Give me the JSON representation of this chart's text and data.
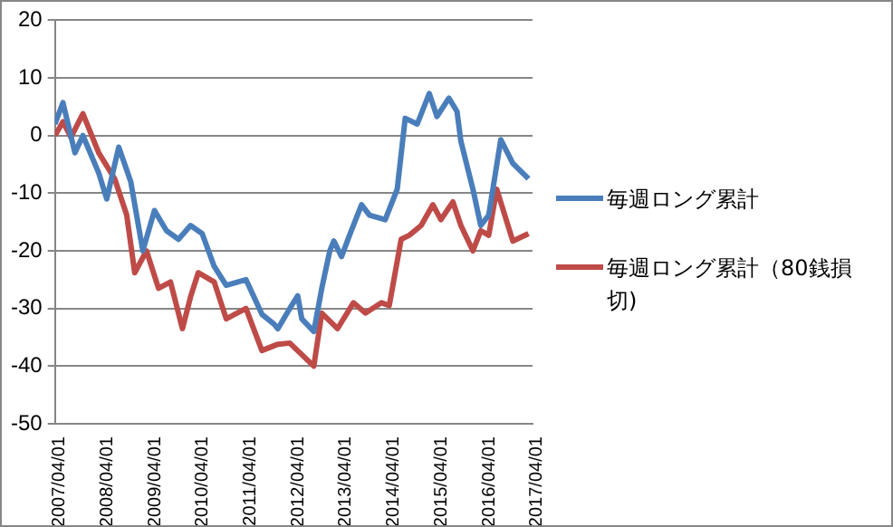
{
  "chart_data": {
    "type": "line",
    "series": [
      {
        "name": "毎週ロング累計",
        "color": "#4a7ebb",
        "x": [
          "2007-04",
          "2007-06",
          "2007-09",
          "2007-11",
          "2008-03",
          "2008-05",
          "2008-08",
          "2008-11",
          "2009-02",
          "2009-05",
          "2009-08",
          "2009-11",
          "2010-02",
          "2010-05",
          "2010-08",
          "2010-11",
          "2011-04",
          "2011-08",
          "2011-11",
          "2011-12",
          "2012-03",
          "2012-05",
          "2012-06",
          "2012-09",
          "2012-11",
          "2013-01",
          "2013-02",
          "2013-04",
          "2013-06",
          "2013-09",
          "2013-11",
          "2014-03",
          "2014-06",
          "2014-08",
          "2014-11",
          "2015-02",
          "2015-04",
          "2015-07",
          "2015-09",
          "2015-10",
          "2016-01",
          "2016-03",
          "2016-05",
          "2016-08",
          "2016-11",
          "2017-03"
        ],
        "values": [
          2,
          5.7,
          -3,
          0,
          -6.5,
          -11,
          -2,
          -8,
          -20,
          -13,
          -16.5,
          -18,
          -15.6,
          -17,
          -22.7,
          -26,
          -25,
          -31,
          -32.7,
          -33.5,
          -30,
          -27.8,
          -31.8,
          -34,
          -26.5,
          -20,
          -18.3,
          -21,
          -17.3,
          -12,
          -13.8,
          -14.6,
          -9.3,
          3,
          2,
          7.3,
          3.3,
          6.5,
          4.2,
          -1,
          -9.3,
          -15.6,
          -13.8,
          -0.7,
          -4.8,
          -7.5
        ]
      },
      {
        "name": "毎週ロング累計（80銭損切)",
        "color": "#be4b48",
        "x": [
          "2007-04",
          "2007-06",
          "2007-08",
          "2007-11",
          "2008-03",
          "2008-07",
          "2008-10",
          "2008-12",
          "2009-03",
          "2009-06",
          "2009-09",
          "2009-12",
          "2010-02",
          "2010-04",
          "2010-08",
          "2010-11",
          "2011-04",
          "2011-08",
          "2011-12",
          "2012-03",
          "2012-06",
          "2012-09",
          "2012-11",
          "2013-03",
          "2013-07",
          "2013-10",
          "2014-02",
          "2014-04",
          "2014-07",
          "2014-09",
          "2014-12",
          "2015-03",
          "2015-05",
          "2015-08",
          "2015-10",
          "2016-01",
          "2016-03",
          "2016-05",
          "2016-07",
          "2016-11",
          "2017-03"
        ],
        "values": [
          0,
          2.4,
          -0.3,
          3.8,
          -3,
          -7.5,
          -13.8,
          -23.8,
          -20,
          -26.5,
          -25.4,
          -33.5,
          -28,
          -23.8,
          -25.4,
          -31.8,
          -30,
          -37.3,
          -36.2,
          -36,
          -38,
          -40,
          -30.8,
          -33.5,
          -29,
          -30.8,
          -29,
          -29.5,
          -18,
          -17.3,
          -15.6,
          -12,
          -14.6,
          -11.5,
          -15.6,
          -20,
          -16.5,
          -17.3,
          -9.3,
          -18.3,
          -17
        ]
      }
    ],
    "xlim": [
      "2007-04-01",
      "2017-04-01"
    ],
    "xticks": [
      {
        "value": "2007-04-01",
        "label": "2007/04/01"
      },
      {
        "value": "2008-04-01",
        "label": "2008/04/01"
      },
      {
        "value": "2009-04-01",
        "label": "2009/04/01"
      },
      {
        "value": "2010-04-01",
        "label": "2010/04/01"
      },
      {
        "value": "2011-04-01",
        "label": "2011/04/01"
      },
      {
        "value": "2012-04-01",
        "label": "2012/04/01"
      },
      {
        "value": "2013-04-01",
        "label": "2013/04/01"
      },
      {
        "value": "2014-04-01",
        "label": "2014/04/01"
      },
      {
        "value": "2015-04-01",
        "label": "2015/04/01"
      },
      {
        "value": "2016-04-01",
        "label": "2016/04/01"
      },
      {
        "value": "2017-04-01",
        "label": "2017/04/01"
      }
    ],
    "ylim": [
      -50,
      20
    ],
    "yticks": [
      -50,
      -40,
      -30,
      -20,
      -10,
      0,
      10,
      20
    ],
    "grid": "y",
    "legend": "right",
    "marker": "none",
    "line_style": "solid"
  }
}
